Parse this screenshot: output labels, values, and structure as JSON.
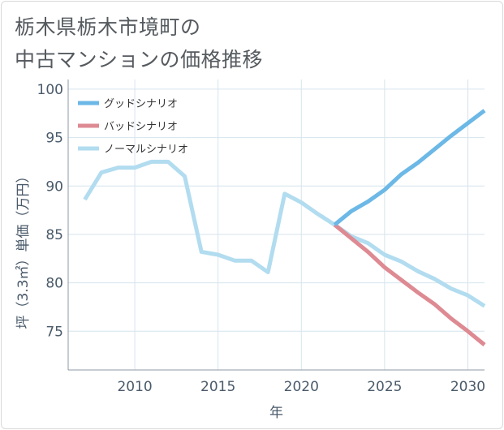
{
  "title_lines": [
    "栃木県栃木市境町の",
    "中古マンションの価格推移"
  ],
  "chart_data": {
    "type": "line",
    "xlabel": "年",
    "ylabel": "坪（3.3㎡）単価（万円）",
    "xlim": [
      2006,
      2031
    ],
    "ylim": [
      71,
      101
    ],
    "x_ticks": [
      2010,
      2015,
      2020,
      2025,
      2030
    ],
    "y_ticks": [
      75,
      80,
      85,
      90,
      95,
      100
    ],
    "grid": true,
    "legend_position": "top-left",
    "series": [
      {
        "name": "グッドシナリオ",
        "color": "#6cb8e6",
        "x": [
          2022,
          2023,
          2024,
          2025,
          2026,
          2027,
          2028,
          2029,
          2030,
          2031
        ],
        "y": [
          86.0,
          87.4,
          88.4,
          89.6,
          91.2,
          92.4,
          93.8,
          95.2,
          96.5,
          97.8
        ]
      },
      {
        "name": "バッドシナリオ",
        "color": "#de8a93",
        "x": [
          2022,
          2023,
          2024,
          2025,
          2026,
          2027,
          2028,
          2029,
          2030,
          2031
        ],
        "y": [
          86.0,
          84.6,
          83.2,
          81.6,
          80.3,
          79.0,
          77.8,
          76.3,
          75.0,
          73.6
        ]
      },
      {
        "name": "ノーマルシナリオ",
        "color": "#b2dcef",
        "x": [
          2007,
          2008,
          2009,
          2010,
          2011,
          2012,
          2013,
          2014,
          2015,
          2016,
          2017,
          2018,
          2019,
          2020,
          2021,
          2022,
          2023,
          2024,
          2025,
          2026,
          2027,
          2028,
          2029,
          2030,
          2031
        ],
        "y": [
          88.6,
          91.4,
          91.9,
          91.9,
          92.5,
          92.5,
          91.0,
          83.2,
          82.9,
          82.3,
          82.3,
          81.1,
          89.2,
          88.3,
          87.1,
          86.0,
          84.8,
          84.1,
          82.9,
          82.2,
          81.2,
          80.4,
          79.4,
          78.7,
          77.6
        ]
      }
    ]
  }
}
